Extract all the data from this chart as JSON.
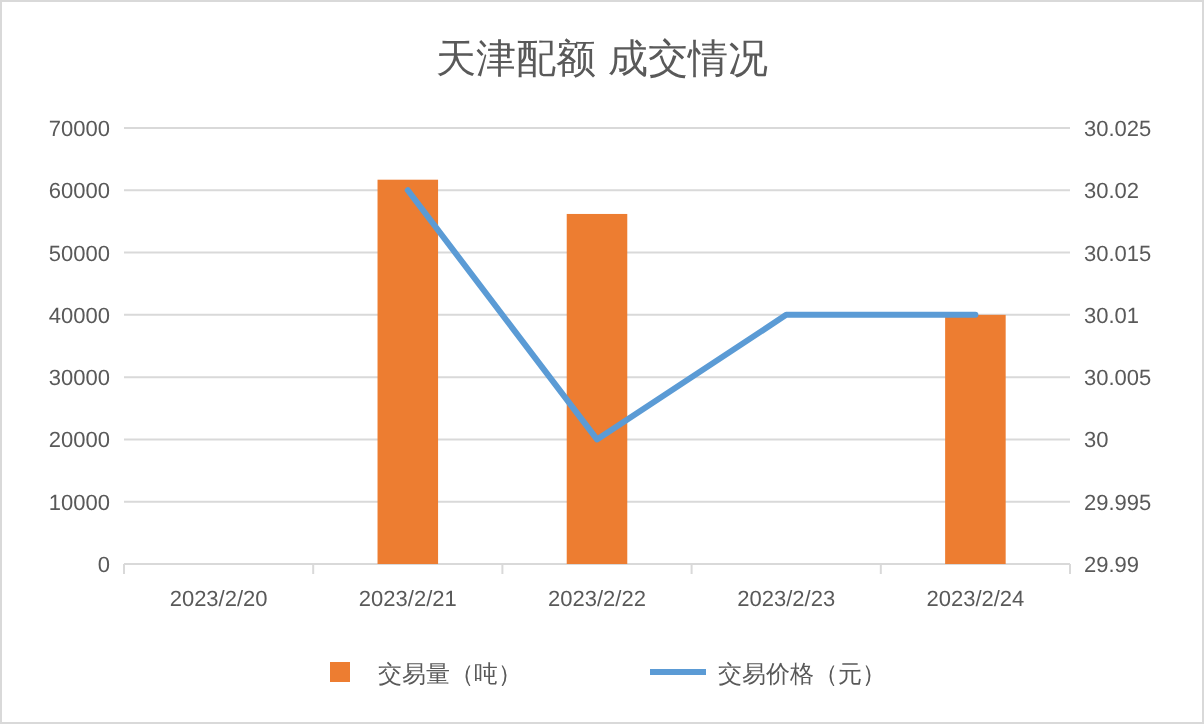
{
  "chart_data": {
    "type": "bar",
    "title": "天津配额 成交情况",
    "categories": [
      "2023/2/20",
      "2023/2/21",
      "2023/2/22",
      "2023/2/23",
      "2023/2/24"
    ],
    "series": [
      {
        "name": "交易量（吨）",
        "color": "#ed7d31",
        "values": [
          null,
          61700,
          56200,
          null,
          40000
        ]
      },
      {
        "name": "交易价格（元）",
        "type": "line",
        "axis": "y2",
        "color": "#5b9bd5",
        "values": [
          null,
          30.02,
          30,
          30.01,
          30.01
        ]
      }
    ],
    "ylim": [
      0,
      70000
    ],
    "yticks": [
      0,
      10000,
      20000,
      30000,
      40000,
      50000,
      60000,
      70000
    ],
    "y2lim": [
      29.99,
      30.025
    ],
    "y2ticks": [
      29.99,
      29.995,
      30,
      30.005,
      30.01,
      30.015,
      30.02,
      30.025
    ],
    "grid": "y",
    "legend": "bottom",
    "marker": "none"
  }
}
